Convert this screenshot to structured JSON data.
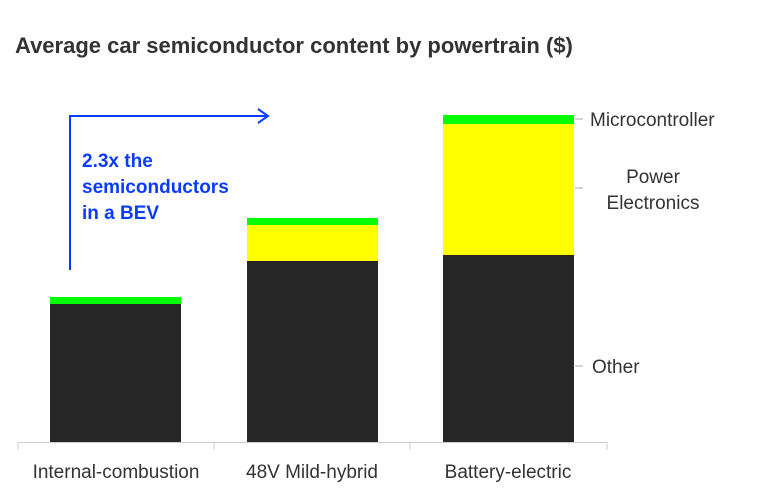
{
  "chart_data": {
    "type": "bar",
    "stacked": true,
    "title": "Average car semiconductor content by powertrain ($)",
    "xlabel": "",
    "ylabel": "",
    "categories": [
      "Internal-combustion",
      "48V Mild-hybrid",
      "Battery-electric"
    ],
    "series": [
      {
        "name": "Other",
        "color": "#262626",
        "values": [
          138,
          181,
          187
        ]
      },
      {
        "name": "Power Electronics",
        "color": "#ffff00",
        "values": [
          0,
          36,
          131
        ]
      },
      {
        "name": "Microcontroller",
        "color": "#00ff00",
        "values": [
          7,
          7,
          9
        ]
      }
    ],
    "ylim": [
      0,
      330
    ],
    "grid": false,
    "legend": "right, labels beside last bar",
    "annotation": {
      "lines": [
        "2.3x the",
        "semiconductors",
        "in a BEV"
      ],
      "color": "#0a3cff"
    }
  }
}
